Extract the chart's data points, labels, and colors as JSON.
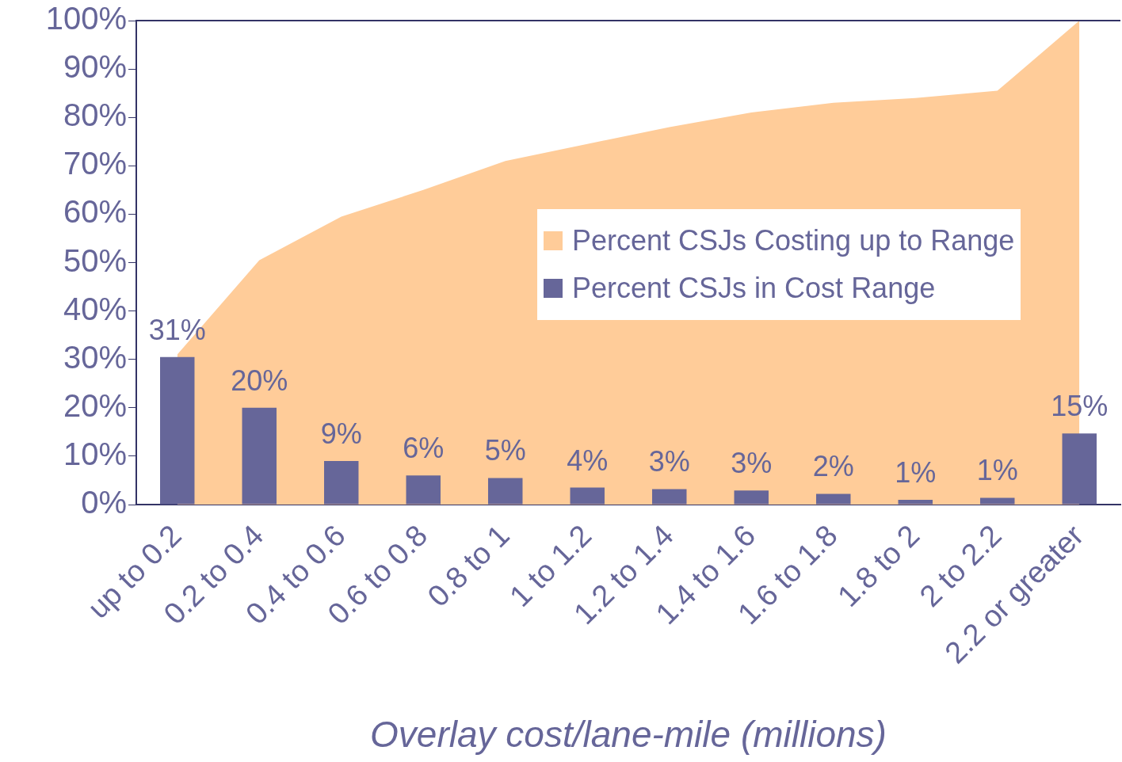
{
  "chart_data": {
    "type": "bar",
    "xlabel": "Overlay cost/lane-mile (millions)",
    "categories": [
      "up to 0.2",
      "0.2 to 0.4",
      "0.4 to 0.6",
      "0.6 to 0.8",
      "0.8 to 1",
      "1 to 1.2",
      "1.2 to 1.4",
      "1.4 to 1.6",
      "1.6 to 1.8",
      "1.8 to 2",
      "2 to 2.2",
      "2.2 or greater"
    ],
    "series": [
      {
        "name": "Percent CSJs Costing up to Range",
        "type": "area",
        "color": "#ffcc99",
        "values": [
          31,
          50.5,
          59.5,
          65,
          71,
          74.5,
          78,
          81,
          83,
          84,
          85.5,
          100
        ]
      },
      {
        "name": "Percent CSJs in Cost Range",
        "color": "#666699",
        "values": [
          30.5,
          20,
          9,
          6,
          5.5,
          3.5,
          3.2,
          2.9,
          2.2,
          1,
          1.4,
          14.7
        ],
        "value_labels": [
          "31%",
          "20%",
          "9%",
          "6%",
          "5%",
          "4%",
          "3%",
          "3%",
          "2%",
          "1%",
          "1%",
          "15%"
        ]
      }
    ],
    "ylim": [
      0,
      100
    ],
    "yticks": [
      {
        "value": 0,
        "label": "0%"
      },
      {
        "value": 10,
        "label": "10%"
      },
      {
        "value": 20,
        "label": "20%"
      },
      {
        "value": 30,
        "label": "30%"
      },
      {
        "value": 40,
        "label": "40%"
      },
      {
        "value": 50,
        "label": "50%"
      },
      {
        "value": 60,
        "label": "60%"
      },
      {
        "value": 70,
        "label": "70%"
      },
      {
        "value": 80,
        "label": "80%"
      },
      {
        "value": 90,
        "label": "90%"
      },
      {
        "value": 100,
        "label": "100%"
      }
    ],
    "grid": false,
    "legend": "right"
  }
}
